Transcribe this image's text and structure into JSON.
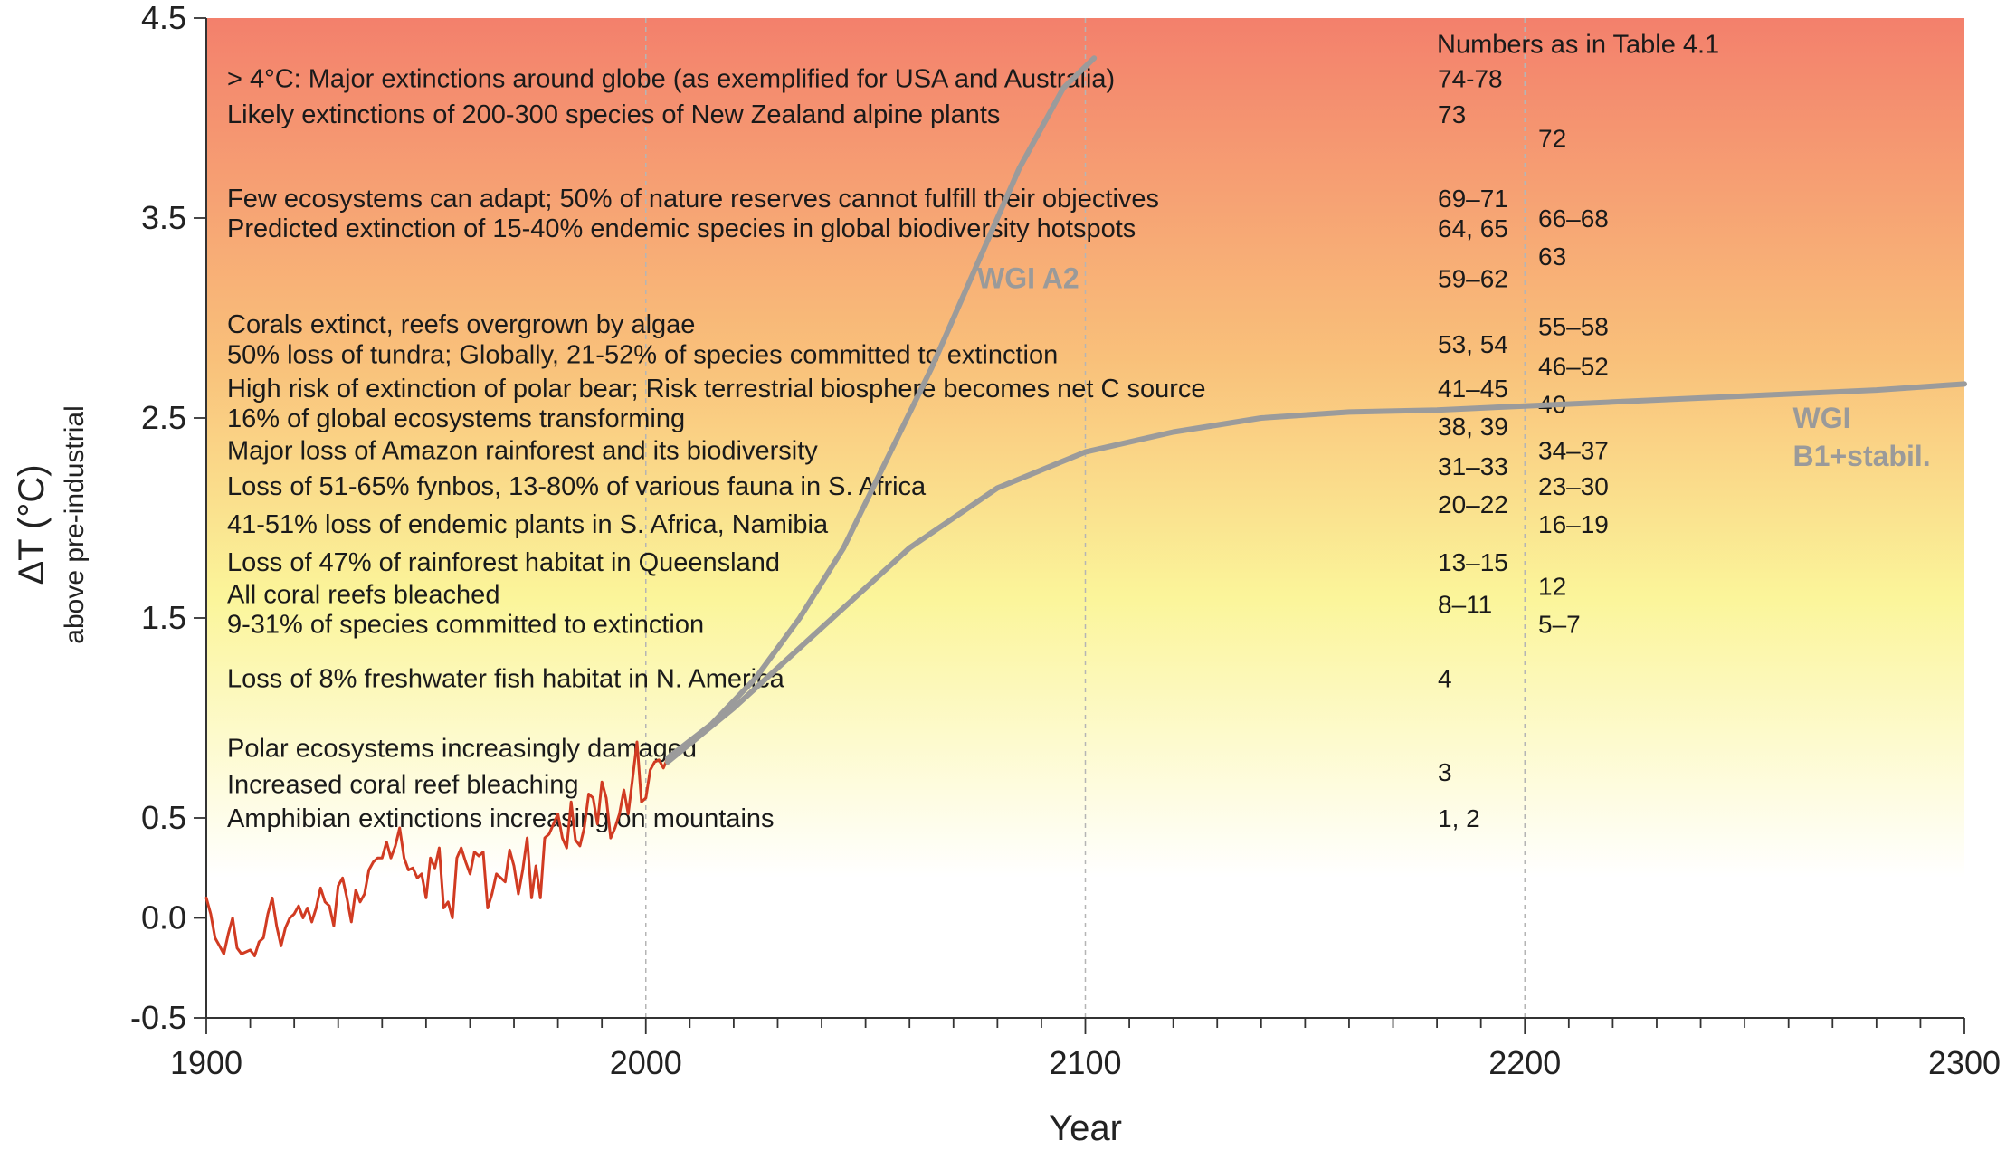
{
  "chart_data": {
    "type": "line",
    "xlabel": "Year",
    "ylabel": "ΔT (°C)",
    "ylabel_sub": "above pre-industrial",
    "xlim": [
      1900,
      2300
    ],
    "ylim": [
      -0.5,
      4.5
    ],
    "x_ticks": [
      1900,
      2000,
      2100,
      2200,
      2300
    ],
    "x_minor_step": 10,
    "y_ticks": [
      "-0.5",
      "0.0",
      "0.5",
      "1.5",
      "2.5",
      "3.5",
      "4.5"
    ],
    "vertical_guides": [
      2000,
      2100,
      2200
    ],
    "background_gradient": [
      "#ffffff",
      "#fbf59a",
      "#f9c07a",
      "#f3806c"
    ],
    "series": [
      {
        "color": "#d13b22",
        "x": [
          1900,
          1901,
          1902,
          1903,
          1904,
          1905,
          1906,
          1907,
          1908,
          1909,
          1910,
          1911,
          1912,
          1913,
          1914,
          1915,
          1916,
          1917,
          1918,
          1919,
          1920,
          1921,
          1922,
          1923,
          1924,
          1925,
          1926,
          1927,
          1928,
          1929,
          1930,
          1931,
          1932,
          1933,
          1934,
          1935,
          1936,
          1937,
          1938,
          1939,
          1940,
          1941,
          1942,
          1943,
          1944,
          1945,
          1946,
          1947,
          1948,
          1949,
          1950,
          1951,
          1952,
          1953,
          1954,
          1955,
          1956,
          1957,
          1958,
          1959,
          1960,
          1961,
          1962,
          1963,
          1964,
          1965,
          1966,
          1967,
          1968,
          1969,
          1970,
          1971,
          1972,
          1973,
          1974,
          1975,
          1976,
          1977,
          1978,
          1979,
          1980,
          1981,
          1982,
          1983,
          1984,
          1985,
          1986,
          1987,
          1988,
          1989,
          1990,
          1991,
          1992,
          1993,
          1994,
          1995,
          1996,
          1997,
          1998,
          1999,
          2000,
          2001,
          2002,
          2003,
          2004,
          2005
        ],
        "y": [
          0.1,
          0.02,
          -0.1,
          -0.14,
          -0.18,
          -0.08,
          0.0,
          -0.15,
          -0.18,
          -0.17,
          -0.16,
          -0.19,
          -0.12,
          -0.1,
          0.02,
          0.1,
          -0.04,
          -0.14,
          -0.05,
          0.0,
          0.02,
          0.06,
          0.0,
          0.05,
          -0.02,
          0.05,
          0.15,
          0.08,
          0.06,
          -0.04,
          0.16,
          0.2,
          0.1,
          -0.02,
          0.14,
          0.08,
          0.12,
          0.24,
          0.28,
          0.3,
          0.3,
          0.38,
          0.3,
          0.36,
          0.45,
          0.3,
          0.24,
          0.25,
          0.2,
          0.22,
          0.1,
          0.3,
          0.25,
          0.35,
          0.05,
          0.08,
          0.0,
          0.3,
          0.35,
          0.28,
          0.22,
          0.33,
          0.31,
          0.33,
          0.05,
          0.12,
          0.22,
          0.2,
          0.18,
          0.34,
          0.26,
          0.12,
          0.24,
          0.4,
          0.1,
          0.26,
          0.1,
          0.4,
          0.42,
          0.47,
          0.52,
          0.4,
          0.35,
          0.58,
          0.39,
          0.36,
          0.45,
          0.62,
          0.6,
          0.47,
          0.68,
          0.6,
          0.4,
          0.45,
          0.52,
          0.64,
          0.52,
          0.7,
          0.88,
          0.58,
          0.6,
          0.74,
          0.78,
          0.79,
          0.75,
          0.8
        ]
      },
      {
        "name": "WGI A2",
        "color": "#9b9b9b",
        "x": [
          2005,
          2015,
          2025,
          2035,
          2045,
          2055,
          2065,
          2075,
          2085,
          2095,
          2102
        ],
        "y": [
          0.8,
          0.97,
          1.2,
          1.5,
          1.85,
          2.3,
          2.75,
          3.25,
          3.75,
          4.15,
          4.3
        ]
      },
      {
        "name": "WGI B1+stabil.",
        "color": "#9b9b9b",
        "x": [
          2005,
          2020,
          2040,
          2060,
          2080,
          2100,
          2120,
          2140,
          2160,
          2180,
          2200,
          2220,
          2240,
          2260,
          2280,
          2300
        ],
        "y": [
          0.78,
          1.05,
          1.45,
          1.85,
          2.15,
          2.33,
          2.43,
          2.5,
          2.53,
          2.54,
          2.56,
          2.58,
          2.6,
          2.62,
          2.64,
          2.67
        ]
      }
    ],
    "scenario_labels": [
      {
        "text": "WGI A2",
        "x": 2087,
        "y": 3.15
      },
      {
        "lines": [
          "WGI",
          "B1+stabil."
        ],
        "x": 2261,
        "y": 2.45
      }
    ],
    "annotations": [
      {
        "text": "Numbers as in Table 4.1",
        "y": 4.37
      },
      {
        "text": "> 4°C: Major extinctions around globe (as exemplified for USA and Australia)",
        "y": 4.2
      },
      {
        "text": "Likely extinctions of 200-300 species of New Zealand alpine plants",
        "y": 4.02
      },
      {
        "text": "Few ecosystems can adapt;  50% of nature reserves cannot fulfill their objectives",
        "y": 3.6
      },
      {
        "text": "Predicted extinction of 15-40% endemic species in global biodiversity hotspots",
        "y": 3.45
      },
      {
        "text": "Corals extinct, reefs overgrown by algae",
        "y": 2.97
      },
      {
        "text": "50% loss of tundra;  Globally, 21-52% of species committed to extinction",
        "y": 2.82
      },
      {
        "text": "High risk of extinction of polar bear;  Risk terrestrial biosphere becomes net C source",
        "y": 2.65
      },
      {
        "text": "16% of global ecosystems transforming",
        "y": 2.5
      },
      {
        "text": "Major loss of Amazon rainforest and its biodiversity",
        "y": 2.34
      },
      {
        "text": "Loss of 51-65% fynbos, 13-80% of various fauna in S. Africa",
        "y": 2.16
      },
      {
        "text": "41-51% loss of endemic plants in S. Africa, Namibia",
        "y": 1.97
      },
      {
        "text": "Loss of 47% of rainforest habitat in Queensland",
        "y": 1.78
      },
      {
        "text": "All coral reefs bleached",
        "y": 1.62
      },
      {
        "text": "9-31% of species committed to extinction",
        "y": 1.47
      },
      {
        "text": "Loss of 8% freshwater fish habitat in N. America",
        "y": 1.2
      },
      {
        "text": "Polar ecosystems increasingly damaged",
        "y": 0.85
      },
      {
        "text": "Increased coral reef bleaching",
        "y": 0.67
      },
      {
        "text": "Amphibian extinctions increasing on mountains",
        "y": 0.5
      }
    ],
    "reference_numbers": [
      {
        "text": "74-78",
        "col": 1,
        "y": 4.2
      },
      {
        "text": "73",
        "col": 1,
        "y": 4.02
      },
      {
        "text": "72",
        "col": 2,
        "y": 3.9
      },
      {
        "text": "69–71",
        "col": 1,
        "y": 3.6
      },
      {
        "text": "66–68",
        "col": 2,
        "y": 3.5
      },
      {
        "text": "64, 65",
        "col": 1,
        "y": 3.45
      },
      {
        "text": "63",
        "col": 2,
        "y": 3.31
      },
      {
        "text": "59–62",
        "col": 1,
        "y": 3.2
      },
      {
        "text": "55–58",
        "col": 2,
        "y": 2.96
      },
      {
        "text": "53, 54",
        "col": 1,
        "y": 2.87
      },
      {
        "text": "46–52",
        "col": 2,
        "y": 2.76
      },
      {
        "text": "41–45",
        "col": 1,
        "y": 2.65
      },
      {
        "text": "40",
        "col": 2,
        "y": 2.57
      },
      {
        "text": "38, 39",
        "col": 1,
        "y": 2.46
      },
      {
        "text": "34–37",
        "col": 2,
        "y": 2.34
      },
      {
        "text": "31–33",
        "col": 1,
        "y": 2.26
      },
      {
        "text": "23–30",
        "col": 2,
        "y": 2.16
      },
      {
        "text": "20–22",
        "col": 1,
        "y": 2.07
      },
      {
        "text": "16–19",
        "col": 2,
        "y": 1.97
      },
      {
        "text": "13–15",
        "col": 1,
        "y": 1.78
      },
      {
        "text": "12",
        "col": 2,
        "y": 1.66
      },
      {
        "text": "8–11",
        "col": 1,
        "y": 1.57
      },
      {
        "text": "5–7",
        "col": 2,
        "y": 1.47
      },
      {
        "text": "4",
        "col": 1,
        "y": 1.2
      },
      {
        "text": "3",
        "col": 1,
        "y": 0.73
      },
      {
        "text": "1, 2",
        "col": 1,
        "y": 0.5
      }
    ]
  }
}
